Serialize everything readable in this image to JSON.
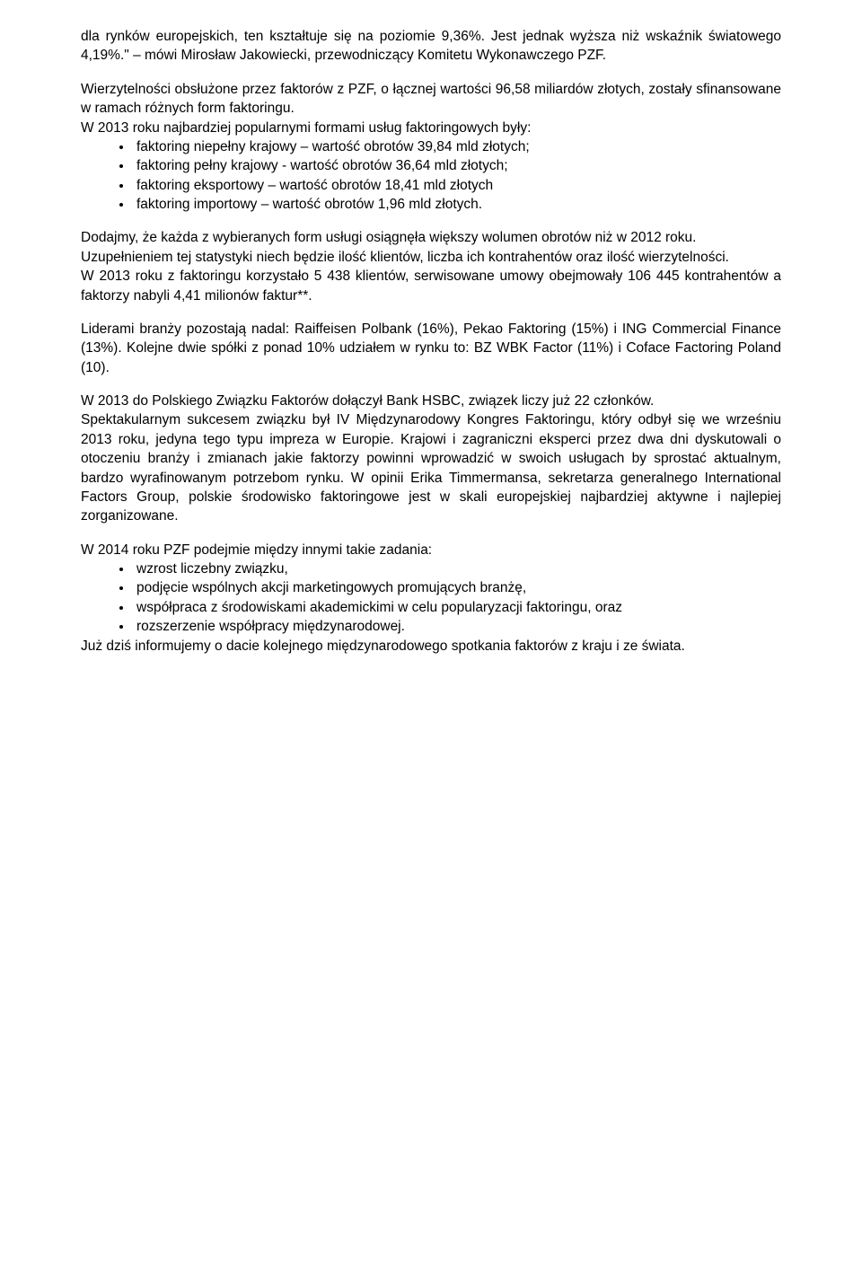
{
  "p1": "dla rynków europejskich, ten kształtuje się na poziomie 9,36%. Jest jednak wyższa niż wskaźnik światowego 4,19%.\" – mówi Mirosław Jakowiecki, przewodniczący Komitetu Wykonawczego PZF.",
  "p2a": "Wierzytelności obsłużone przez faktorów z PZF, o łącznej wartości 96,58 miliardów złotych, zostały sfinansowane w ramach różnych form faktoringu.",
  "p2b": "W 2013 roku najbardziej popularnymi formami usług faktoringowych były:",
  "list1": [
    "faktoring niepełny krajowy – wartość obrotów 39,84 mld złotych;",
    "faktoring pełny krajowy  - wartość obrotów 36,64 mld złotych;",
    "faktoring eksportowy – wartość obrotów 18,41 mld złotych",
    "faktoring importowy – wartość obrotów 1,96 mld złotych."
  ],
  "p3a": "Dodajmy, że każda z wybieranych form usługi osiągnęła większy wolumen obrotów niż w 2012 roku.",
  "p3b": "Uzupełnieniem tej statystyki niech będzie ilość klientów, liczba ich kontrahentów oraz ilość wierzytelności.",
  "p3c": "W 2013 roku z faktoringu korzystało 5 438 klientów, serwisowane umowy obejmowały 106 445  kontrahentów a faktorzy nabyli 4,41 milionów faktur**.",
  "p4": "Liderami branży pozostają nadal: Raiffeisen Polbank (16%), Pekao Faktoring (15%) i ING Commercial Finance (13%). Kolejne dwie spółki z ponad 10% udziałem w rynku to: BZ WBK Factor (11%) i Coface Factoring Poland (10).",
  "p5a": "W 2013 do Polskiego Związku Faktorów dołączył Bank HSBC, związek liczy już 22 członków.",
  "p5b": "Spektakularnym sukcesem związku był IV Międzynarodowy Kongres Faktoringu, który odbył się we wrześniu 2013 roku, jedyna tego typu impreza w Europie. Krajowi i zagraniczni eksperci przez dwa dni dyskutowali o otoczeniu branży i zmianach jakie faktorzy powinni wprowadzić w swoich usługach by sprostać aktualnym, bardzo wyrafinowanym potrzebom rynku. W opinii Erika Timmermansa, sekretarza generalnego International Factors Group, polskie środowisko faktoringowe jest w skali europejskiej najbardziej aktywne i najlepiej zorganizowane.",
  "p6": "W 2014 roku PZF podejmie między innymi takie zadania:",
  "list2": [
    "wzrost liczebny związku,",
    "podjęcie wspólnych akcji marketingowych promujących branżę,",
    "współpraca z środowiskami akademickimi w celu popularyzacji faktoringu, oraz",
    "rozszerzenie współpracy międzynarodowej."
  ],
  "p7": "Już dziś informujemy o dacie kolejnego międzynarodowego spotkania faktorów z kraju i ze świata."
}
